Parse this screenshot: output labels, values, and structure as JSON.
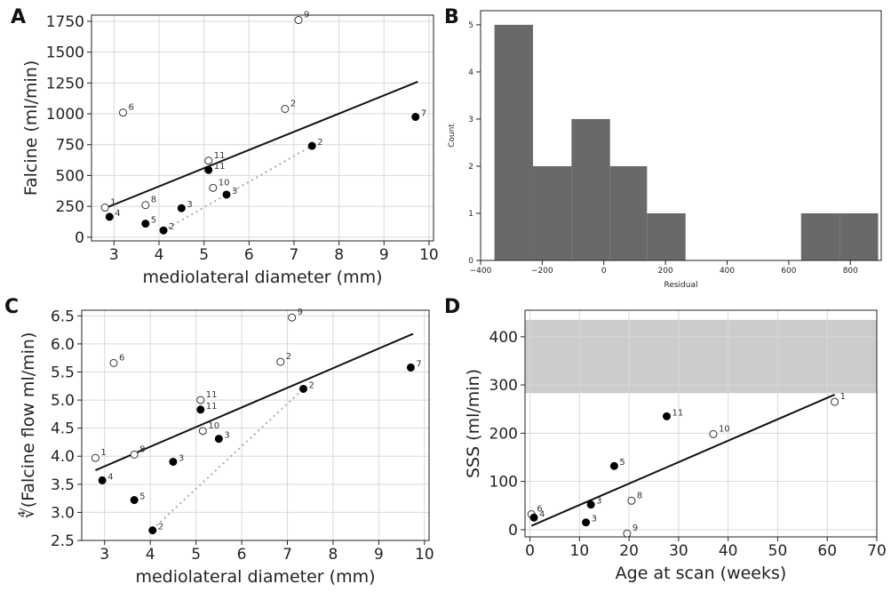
{
  "chart_data": [
    {
      "panel": "A",
      "type": "scatter",
      "xlabel": "mediolateral diameter (mm)",
      "ylabel": "Falcine (ml/min)",
      "xlim": [
        2.5,
        10.1
      ],
      "ylim": [
        -30,
        1800
      ],
      "xticks": [
        3,
        4,
        5,
        6,
        7,
        8,
        9,
        10
      ],
      "yticks": [
        0,
        250,
        500,
        750,
        1000,
        1250,
        1500,
        1750
      ],
      "grid": true,
      "open_points": [
        {
          "x": 2.8,
          "y": 240,
          "label": "1"
        },
        {
          "x": 3.2,
          "y": 1010,
          "label": "6"
        },
        {
          "x": 3.7,
          "y": 260,
          "label": "8"
        },
        {
          "x": 5.1,
          "y": 620,
          "label": "11"
        },
        {
          "x": 5.2,
          "y": 400,
          "label": "10"
        },
        {
          "x": 6.8,
          "y": 1040,
          "label": "2"
        },
        {
          "x": 7.1,
          "y": 1760,
          "label": "9"
        }
      ],
      "filled_points": [
        {
          "x": 2.9,
          "y": 165,
          "label": "4"
        },
        {
          "x": 3.7,
          "y": 110,
          "label": "5"
        },
        {
          "x": 4.1,
          "y": 55,
          "label": "2"
        },
        {
          "x": 4.5,
          "y": 235,
          "label": "3"
        },
        {
          "x": 5.1,
          "y": 545,
          "label": "11"
        },
        {
          "x": 5.5,
          "y": 345,
          "label": "3"
        },
        {
          "x": 7.4,
          "y": 740,
          "label": "2"
        },
        {
          "x": 9.7,
          "y": 975,
          "label": "7"
        }
      ],
      "fit_line": [
        [
          2.8,
          235
        ],
        [
          9.75,
          1260
        ]
      ],
      "dotted_segments": [
        [
          [
            4.1,
            55
          ],
          [
            7.4,
            740
          ]
        ]
      ]
    },
    {
      "panel": "B",
      "type": "bar",
      "xlabel": "Residual",
      "ylabel": "Count",
      "xlim": [
        -400,
        900
      ],
      "ylim": [
        0,
        5.3
      ],
      "xticks": [
        -400,
        -200,
        0,
        200,
        400,
        600,
        800
      ],
      "xtick_labels": [
        "−400",
        "−200",
        "0",
        "200",
        "400",
        "600",
        "800"
      ],
      "yticks": [
        0,
        1,
        2,
        3,
        4,
        5
      ],
      "grid": false,
      "bins": [
        {
          "x0": -355,
          "x1": -230,
          "count": 5
        },
        {
          "x0": -230,
          "x1": -105,
          "count": 2
        },
        {
          "x0": -105,
          "x1": 20,
          "count": 3
        },
        {
          "x0": 20,
          "x1": 140,
          "count": 2
        },
        {
          "x0": 140,
          "x1": 265,
          "count": 1
        },
        {
          "x0": 265,
          "x1": 390,
          "count": 0
        },
        {
          "x0": 390,
          "x1": 515,
          "count": 0
        },
        {
          "x0": 515,
          "x1": 640,
          "count": 0
        },
        {
          "x0": 640,
          "x1": 765,
          "count": 1
        },
        {
          "x0": 765,
          "x1": 890,
          "count": 1
        }
      ],
      "bar_color": "#696969"
    },
    {
      "panel": "C",
      "type": "scatter",
      "xlabel": "mediolateral diameter (mm)",
      "ylabel": "∜(Falcine flow ml/min)",
      "xlim": [
        2.5,
        10.1
      ],
      "ylim": [
        2.5,
        6.6
      ],
      "xticks": [
        3,
        4,
        5,
        6,
        7,
        8,
        9,
        10
      ],
      "yticks": [
        2.5,
        3.0,
        3.5,
        4.0,
        4.5,
        5.0,
        5.5,
        6.0,
        6.5
      ],
      "ytick_labels": [
        "2.5",
        "3.0",
        "3.5",
        "4.0",
        "4.5",
        "5.0",
        "5.5",
        "6.0",
        "6.5"
      ],
      "grid": true,
      "open_points": [
        {
          "x": 2.8,
          "y": 3.97,
          "label": "1"
        },
        {
          "x": 3.2,
          "y": 5.66,
          "label": "6"
        },
        {
          "x": 3.65,
          "y": 4.03,
          "label": "8"
        },
        {
          "x": 5.1,
          "y": 5.0,
          "label": "11"
        },
        {
          "x": 5.15,
          "y": 4.45,
          "label": "10"
        },
        {
          "x": 6.85,
          "y": 5.68,
          "label": "2"
        },
        {
          "x": 7.1,
          "y": 6.47,
          "label": "9"
        }
      ],
      "filled_points": [
        {
          "x": 2.95,
          "y": 3.57,
          "label": "4"
        },
        {
          "x": 3.65,
          "y": 3.22,
          "label": "5"
        },
        {
          "x": 4.05,
          "y": 2.68,
          "label": "2"
        },
        {
          "x": 4.5,
          "y": 3.9,
          "label": "3"
        },
        {
          "x": 5.1,
          "y": 4.83,
          "label": "11"
        },
        {
          "x": 5.5,
          "y": 4.31,
          "label": "3"
        },
        {
          "x": 7.35,
          "y": 5.2,
          "label": "2"
        },
        {
          "x": 9.7,
          "y": 5.58,
          "label": "7"
        }
      ],
      "fit_line": [
        [
          2.8,
          3.75
        ],
        [
          9.75,
          6.18
        ]
      ],
      "dotted_segments": [
        [
          [
            4.05,
            2.7
          ],
          [
            7.35,
            5.2
          ]
        ]
      ]
    },
    {
      "panel": "D",
      "type": "scatter",
      "xlabel": "Age at scan (weeks)",
      "ylabel": "SSS (ml/min)",
      "xlim": [
        -1,
        70
      ],
      "ylim": [
        -15,
        455
      ],
      "xticks": [
        0,
        10,
        20,
        30,
        40,
        50,
        60,
        70
      ],
      "yticks": [
        0,
        100,
        200,
        300,
        400
      ],
      "grid": true,
      "shaded_band": {
        "y0": 283,
        "y1": 435,
        "color": "#cccccc"
      },
      "open_points": [
        {
          "x": 0.3,
          "y": 32,
          "label": "6"
        },
        {
          "x": 20.5,
          "y": 60,
          "label": "8"
        },
        {
          "x": 19.6,
          "y": -8,
          "label": "9"
        },
        {
          "x": 37.0,
          "y": 198,
          "label": "10"
        },
        {
          "x": 61.5,
          "y": 265,
          "label": "1"
        }
      ],
      "filled_points": [
        {
          "x": 0.8,
          "y": 25,
          "label": "4"
        },
        {
          "x": 11.3,
          "y": 15,
          "label": "3"
        },
        {
          "x": 12.3,
          "y": 52,
          "label": "3"
        },
        {
          "x": 17.0,
          "y": 132,
          "label": "5"
        },
        {
          "x": 27.6,
          "y": 235,
          "label": "11"
        }
      ],
      "fit_line": [
        [
          0.3,
          8
        ],
        [
          61.5,
          280
        ]
      ]
    }
  ],
  "panel_letters": [
    "A",
    "B",
    "C",
    "D"
  ]
}
